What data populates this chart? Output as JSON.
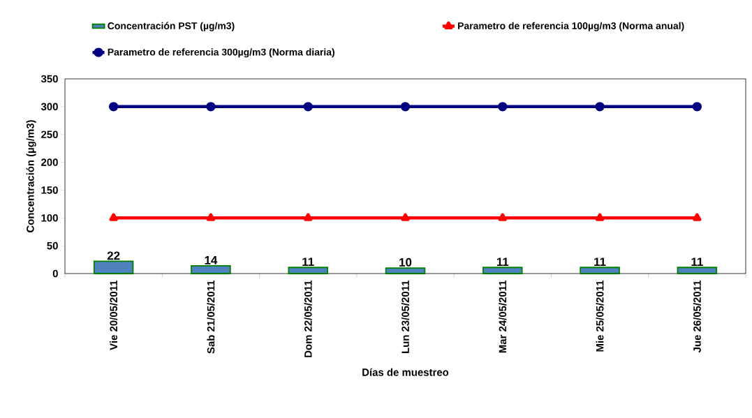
{
  "chart_data": {
    "type": "bar",
    "categories": [
      "Vie 20/05/2011",
      "Sab 21/05/2011",
      "Dom 22/05/2011",
      "Lun 23/05/2011",
      "Mar 24/05/2011",
      "Mie 25/05/2011",
      "Jue 26/05/2011"
    ],
    "series": [
      {
        "name": "Concentración  PST (µg/m3)",
        "color": "#4f81bd",
        "values": [
          22,
          14,
          11,
          10,
          11,
          11,
          11
        ],
        "data_labels": true
      },
      {
        "name": "Parametro de referencia  100µg/m3 (Norma anual)",
        "type": "line",
        "color": "#ff0000",
        "marker": "triangle",
        "values": [
          100,
          100,
          100,
          100,
          100,
          100,
          100
        ]
      },
      {
        "name": "Parametro de referencia  300µg/m3 (Norma diaria)",
        "type": "line",
        "color": "#000080",
        "marker": "circle",
        "values": [
          300,
          300,
          300,
          300,
          300,
          300,
          300
        ]
      }
    ],
    "xlabel": "Días de muestreo",
    "ylabel": "Concentración (µg/m3)",
    "ylim": [
      0,
      350
    ],
    "yticks": [
      0,
      50,
      100,
      150,
      200,
      250,
      300,
      350
    ],
    "grid": false,
    "legend": "top",
    "line_style": "solid"
  }
}
